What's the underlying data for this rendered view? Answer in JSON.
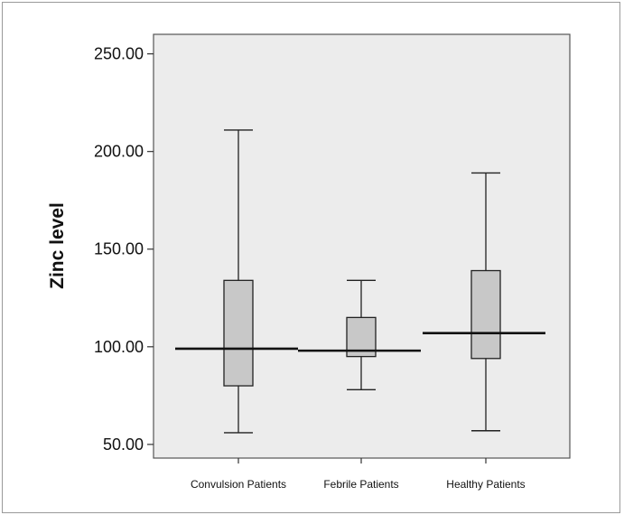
{
  "chart_data": {
    "type": "boxplot",
    "title": "",
    "xlabel": "",
    "ylabel": "Zinc level",
    "ylim": [
      43,
      260
    ],
    "yticks": [
      "50.00",
      "100.00",
      "150.00",
      "200.00",
      "250.00"
    ],
    "ytick_values": [
      50,
      100,
      150,
      200,
      250
    ],
    "categories": [
      "Convulsion Patients",
      "Febrile Patients",
      "Healthy Patients"
    ],
    "boxes": [
      {
        "category": "Convulsion Patients",
        "min": 56,
        "q1": 80,
        "median": 99,
        "q3": 134,
        "max": 211
      },
      {
        "category": "Febrile Patients",
        "min": 78,
        "q1": 95,
        "median": 98,
        "q3": 115,
        "max": 134
      },
      {
        "category": "Healthy Patients",
        "min": 57,
        "q1": 94,
        "median": 107,
        "q3": 139,
        "max": 189
      }
    ],
    "grid": false,
    "legend": "none",
    "colors": {
      "plot_background": "#ececec",
      "box_fill": "#c8c8c8",
      "lines": "#222222"
    }
  }
}
